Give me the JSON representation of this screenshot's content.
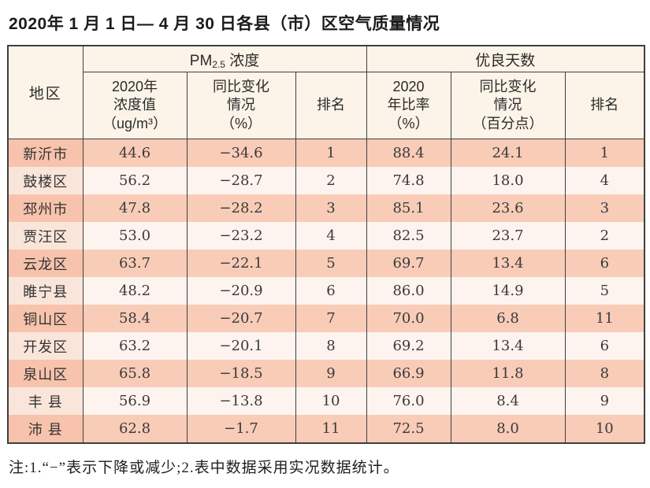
{
  "title": "2020年 1 月 1 日— 4 月 30 日各县（市）区空气质量情况",
  "table": {
    "region_header": "地区",
    "group_pm25": {
      "prefix": "PM",
      "sub": "2.5",
      "suffix": " 浓度"
    },
    "group_good_days": "优良天数",
    "sub_headers": {
      "pm_value": "2020年\n浓度值\n（ug/m³）",
      "pm_change": "同比变化\n情况\n（%）",
      "pm_rank": "排名",
      "good_rate": "2020\n年比率\n（%）",
      "good_change": "同比变化\n情况\n（百分点）",
      "good_rank": "排名"
    },
    "rows": [
      {
        "region": "新沂市",
        "pm_value": "44.6",
        "pm_change": "−34.6",
        "pm_rank": "1",
        "good_rate": "88.4",
        "good_change": "24.1",
        "good_rank": "1"
      },
      {
        "region": "鼓楼区",
        "pm_value": "56.2",
        "pm_change": "−28.7",
        "pm_rank": "2",
        "good_rate": "74.8",
        "good_change": "18.0",
        "good_rank": "4"
      },
      {
        "region": "邳州市",
        "pm_value": "47.8",
        "pm_change": "−28.2",
        "pm_rank": "3",
        "good_rate": "85.1",
        "good_change": "23.6",
        "good_rank": "3"
      },
      {
        "region": "贾汪区",
        "pm_value": "53.0",
        "pm_change": "−23.2",
        "pm_rank": "4",
        "good_rate": "82.5",
        "good_change": "23.7",
        "good_rank": "2"
      },
      {
        "region": "云龙区",
        "pm_value": "63.7",
        "pm_change": "−22.1",
        "pm_rank": "5",
        "good_rate": "69.7",
        "good_change": "13.4",
        "good_rank": "6"
      },
      {
        "region": "睢宁县",
        "pm_value": "48.2",
        "pm_change": "−20.9",
        "pm_rank": "6",
        "good_rate": "86.0",
        "good_change": "14.9",
        "good_rank": "5"
      },
      {
        "region": "铜山区",
        "pm_value": "58.4",
        "pm_change": "−20.7",
        "pm_rank": "7",
        "good_rate": "70.0",
        "good_change": "6.8",
        "good_rank": "11"
      },
      {
        "region": "开发区",
        "pm_value": "63.2",
        "pm_change": "−20.1",
        "pm_rank": "8",
        "good_rate": "69.2",
        "good_change": "13.4",
        "good_rank": "6"
      },
      {
        "region": "泉山区",
        "pm_value": "65.8",
        "pm_change": "−18.5",
        "pm_rank": "9",
        "good_rate": "66.9",
        "good_change": "11.8",
        "good_rank": "8"
      },
      {
        "region": "丰 县",
        "pm_value": "56.9",
        "pm_change": "−13.8",
        "pm_rank": "10",
        "good_rate": "76.0",
        "good_change": "8.4",
        "good_rank": "9"
      },
      {
        "region": "沛 县",
        "pm_value": "62.8",
        "pm_change": "−1.7",
        "pm_rank": "11",
        "good_rate": "72.5",
        "good_change": "8.0",
        "good_rank": "10"
      }
    ]
  },
  "note": "注:1.“−”表示下降或减少;2.表中数据采用实况数据统计。",
  "colors": {
    "row_odd": "#f9ccb8",
    "row_even": "#fdf4ef",
    "region_odd": "#f7c3ac",
    "region_even": "#fae5da",
    "header_bg": "#fcf4e8",
    "border": "#3f3f3f"
  }
}
